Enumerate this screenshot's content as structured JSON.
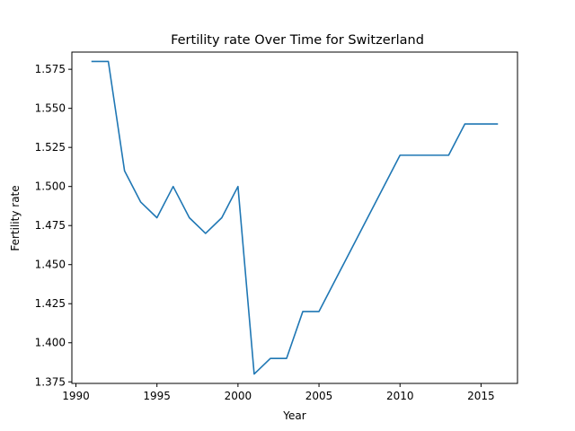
{
  "chart_data": {
    "type": "line",
    "title": "Fertility rate Over Time for Switzerland",
    "xlabel": "Year",
    "ylabel": "Fertility rate",
    "xlim": [
      1989.75,
      2017.25
    ],
    "ylim": [
      1.374,
      1.586
    ],
    "x_ticks": [
      1990,
      1995,
      2000,
      2005,
      2010,
      2015
    ],
    "y_ticks": [
      1.375,
      1.4,
      1.425,
      1.45,
      1.475,
      1.5,
      1.525,
      1.55,
      1.575
    ],
    "x_tick_labels": [
      "1990",
      "1995",
      "2000",
      "2005",
      "2010",
      "2015"
    ],
    "y_tick_labels": [
      "1.375",
      "1.400",
      "1.425",
      "1.450",
      "1.475",
      "1.500",
      "1.525",
      "1.550",
      "1.575"
    ],
    "grid": false,
    "series": [
      {
        "color": "#1f77b4",
        "x": [
          1991,
          1992,
          1993,
          1994,
          1995,
          1996,
          1997,
          1998,
          1999,
          2000,
          2001,
          2002,
          2003,
          2004,
          2005,
          2010,
          2011,
          2012,
          2013,
          2014,
          2015,
          2016
        ],
        "values": [
          1.58,
          1.58,
          1.51,
          1.49,
          1.48,
          1.5,
          1.48,
          1.47,
          1.48,
          1.5,
          1.38,
          1.39,
          1.39,
          1.42,
          1.42,
          1.52,
          1.52,
          1.52,
          1.52,
          1.54,
          1.54,
          1.54
        ]
      }
    ]
  }
}
